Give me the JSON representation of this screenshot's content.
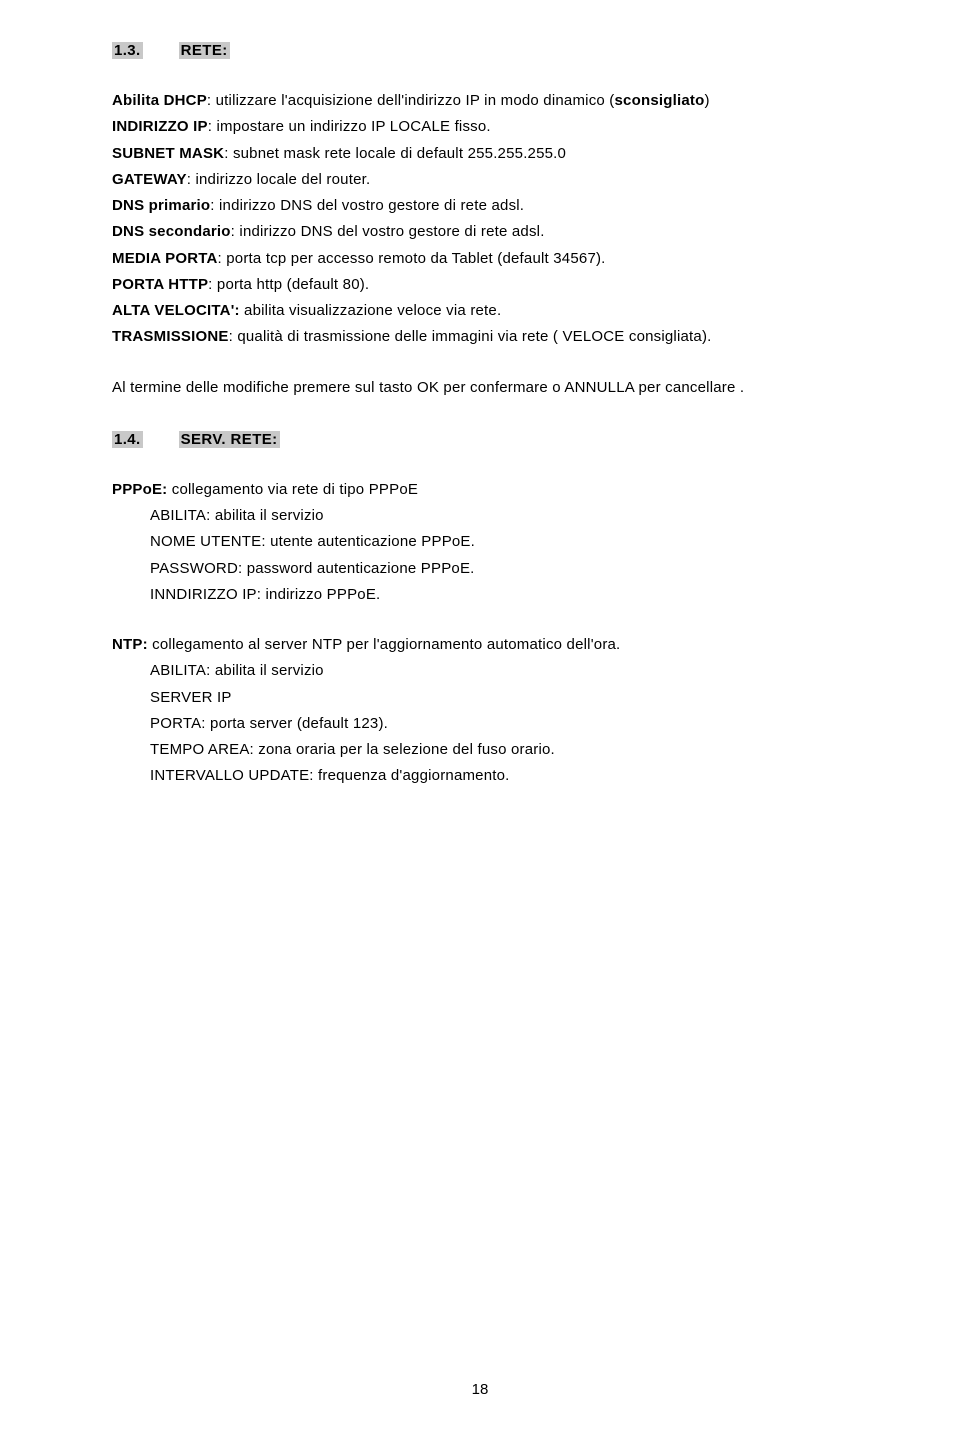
{
  "section13": {
    "num": "1.3.",
    "title": "RETE:",
    "items": [
      {
        "label": "Abilita DHCP",
        "text": ": utilizzare l'acquisizione dell'indirizzo IP in modo dinamico (",
        "tail_bold": "sconsigliato",
        "tail": ")"
      },
      {
        "label": "INDIRIZZO IP",
        "text": ": impostare un indirizzo IP LOCALE fisso."
      },
      {
        "label": "SUBNET MASK",
        "text": ": subnet mask rete locale di default 255.255.255.0"
      },
      {
        "label": "GATEWAY",
        "text": ": indirizzo locale del router."
      },
      {
        "label": "DNS primario",
        "text": ": indirizzo DNS del vostro gestore di rete adsl."
      },
      {
        "label": "DNS secondario",
        "text": ": indirizzo DNS del vostro gestore di rete adsl."
      },
      {
        "label": "MEDIA PORTA",
        "text": ": porta tcp per accesso remoto da Tablet (default 34567)."
      },
      {
        "label": "PORTA HTTP",
        "text": ": porta http (default 80)."
      },
      {
        "label": "ALTA VELOCITA':",
        "text": " abilita visualizzazione veloce via rete."
      },
      {
        "label": "TRASMISSIONE",
        "text": ": qualità di trasmissione delle immagini via rete ( VELOCE consigliata)."
      }
    ],
    "confirm": "Al termine delle modifiche premere sul tasto OK per confermare o ANNULLA per cancellare ."
  },
  "section14": {
    "num": "1.4.",
    "title": "SERV. RETE:",
    "pppoe": {
      "lead": "PPPoE:",
      "lead_text": " collegamento via rete di tipo PPPoE",
      "lines": [
        "ABILITA: abilita il servizio",
        "NOME UTENTE: utente autenticazione PPPoE.",
        "PASSWORD: password autenticazione PPPoE.",
        "INNDIRIZZO IP: indirizzo PPPoE."
      ]
    },
    "ntp": {
      "lead": "NTP:",
      "lead_text": " collegamento al server NTP per l'aggiornamento automatico dell'ora.",
      "lines": [
        "ABILITA: abilita il servizio",
        "SERVER IP",
        "PORTA: porta server (default 123).",
        "TEMPO AREA: zona oraria per la selezione del fuso orario.",
        "INTERVALLO UPDATE: frequenza d'aggiornamento."
      ]
    }
  },
  "page_number": "18"
}
